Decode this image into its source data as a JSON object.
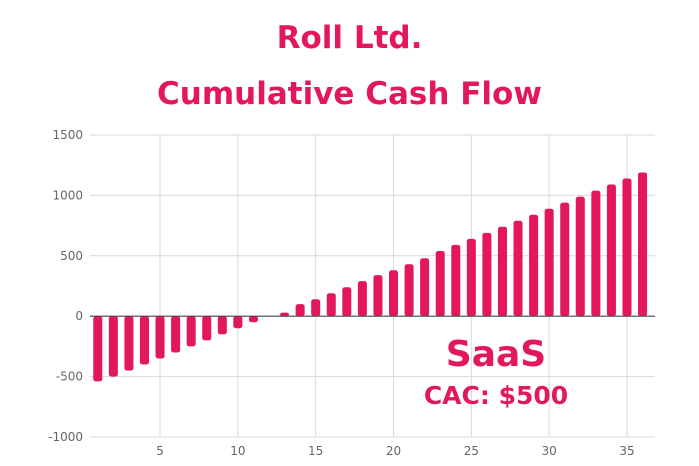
{
  "colors": {
    "accent": "#e2175c",
    "grid": "#d9d9d9",
    "axis_text": "#666666",
    "zero_line": "#444444"
  },
  "header": {
    "title_line1": "Roll Ltd.",
    "title_line2": "Cumulative Cash Flow"
  },
  "chart_data": {
    "type": "bar",
    "title": "Roll Ltd. Cumulative Cash Flow",
    "xlabel": "",
    "ylabel": "",
    "x": [
      1,
      2,
      3,
      4,
      5,
      6,
      7,
      8,
      9,
      10,
      11,
      12,
      13,
      14,
      15,
      16,
      17,
      18,
      19,
      20,
      21,
      22,
      23,
      24,
      25,
      26,
      27,
      28,
      29,
      30,
      31,
      32,
      33,
      34,
      35,
      36
    ],
    "values": [
      -540,
      -500,
      -450,
      -400,
      -350,
      -300,
      -250,
      -200,
      -150,
      -100,
      -50,
      0,
      30,
      100,
      140,
      190,
      240,
      290,
      340,
      380,
      430,
      480,
      540,
      590,
      640,
      690,
      740,
      790,
      840,
      890,
      940,
      990,
      1040,
      1090,
      1140,
      1190
    ],
    "ylim": [
      -1000,
      1500
    ],
    "yticks": [
      -1000,
      -500,
      0,
      500,
      1000,
      1500
    ],
    "xticks": [
      5,
      10,
      15,
      20,
      25,
      30,
      35
    ],
    "xlim": [
      0.5,
      36.8
    ],
    "grid": true,
    "annotations": [
      {
        "text": "SaaS"
      },
      {
        "text": "CAC: $500"
      }
    ]
  }
}
